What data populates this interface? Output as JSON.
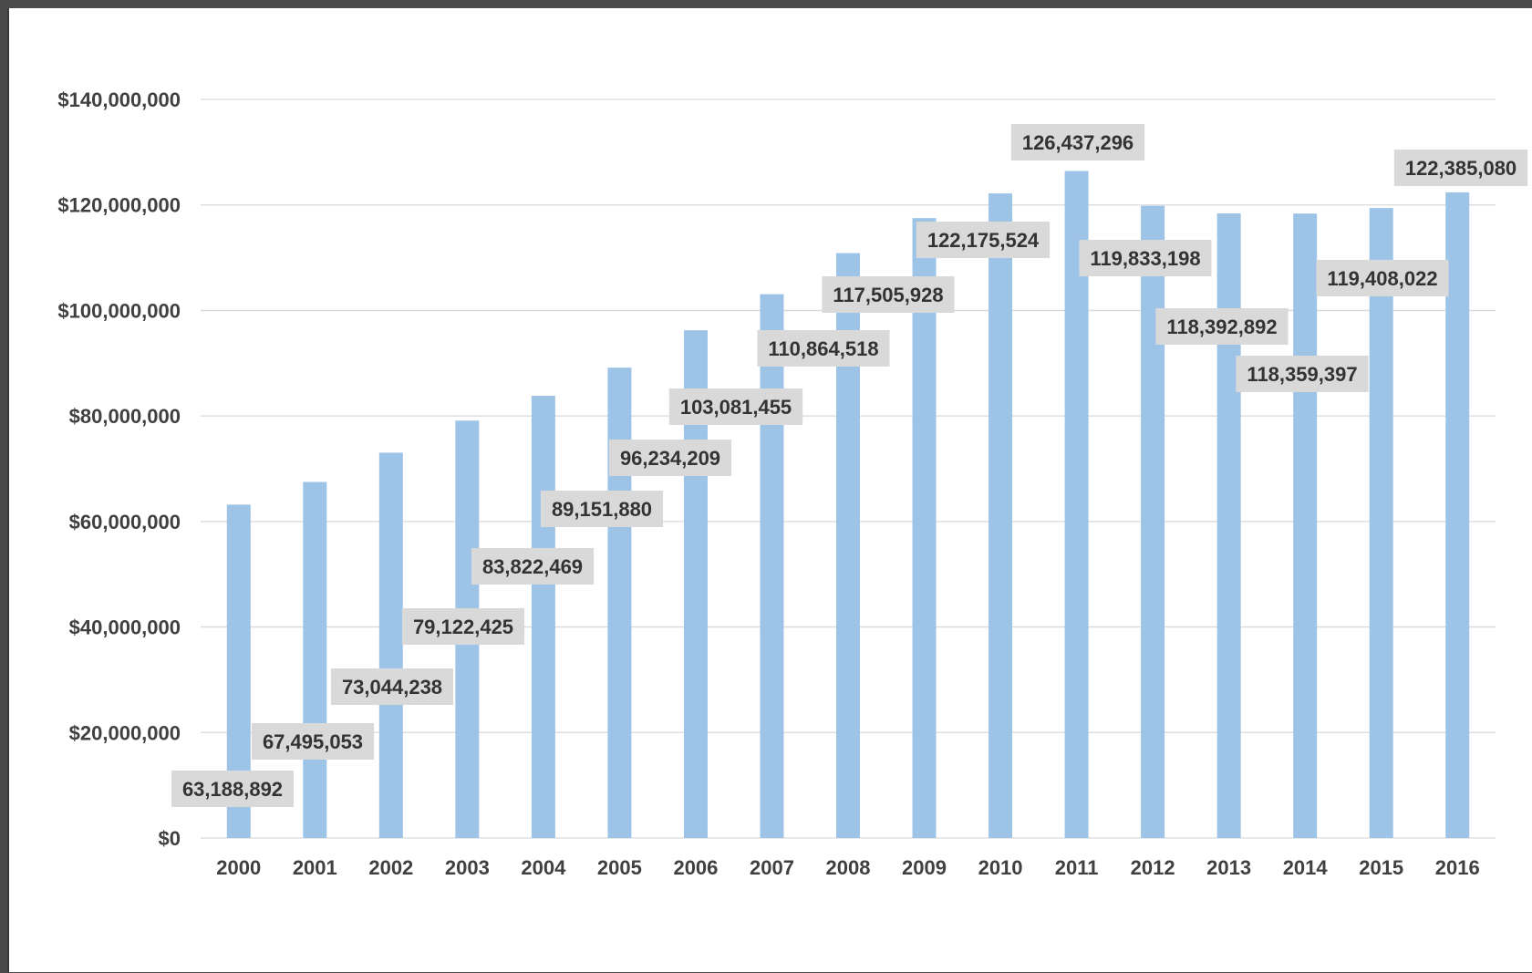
{
  "chart_data": {
    "type": "bar",
    "categories": [
      "2000",
      "2001",
      "2002",
      "2003",
      "2004",
      "2005",
      "2006",
      "2007",
      "2008",
      "2009",
      "2010",
      "2011",
      "2012",
      "2013",
      "2014",
      "2015",
      "2016"
    ],
    "values": [
      63188892,
      67495053,
      73044238,
      79122425,
      83822469,
      89151880,
      96234209,
      103081455,
      110864518,
      117505928,
      122175524,
      126437296,
      119833198,
      118392892,
      118359397,
      119408022,
      122385080
    ],
    "data_labels": [
      "63,188,892",
      "67,495,053",
      "73,044,238",
      "79,122,425",
      "83,822,469",
      "89,151,880",
      "96,234,209",
      "103,081,455",
      "110,864,518",
      "117,505,928",
      "122,175,524",
      "126,437,296",
      "119,833,198",
      "118,392,892",
      "118,359,397",
      "119,408,022",
      "122,385,080"
    ],
    "y_ticks": [
      0,
      20000000,
      40000000,
      60000000,
      80000000,
      100000000,
      120000000,
      140000000
    ],
    "y_tick_labels": [
      "$0",
      "$20,000,000",
      "$40,000,000",
      "$60,000,000",
      "$80,000,000",
      "$100,000,000",
      "$120,000,000",
      "$140,000,000"
    ],
    "ylim": [
      0,
      140000000
    ],
    "grid": true,
    "colors": {
      "bar": "#9dc3e6",
      "label_box": "#d9d9d9",
      "grid": "#d9d9d9"
    }
  }
}
